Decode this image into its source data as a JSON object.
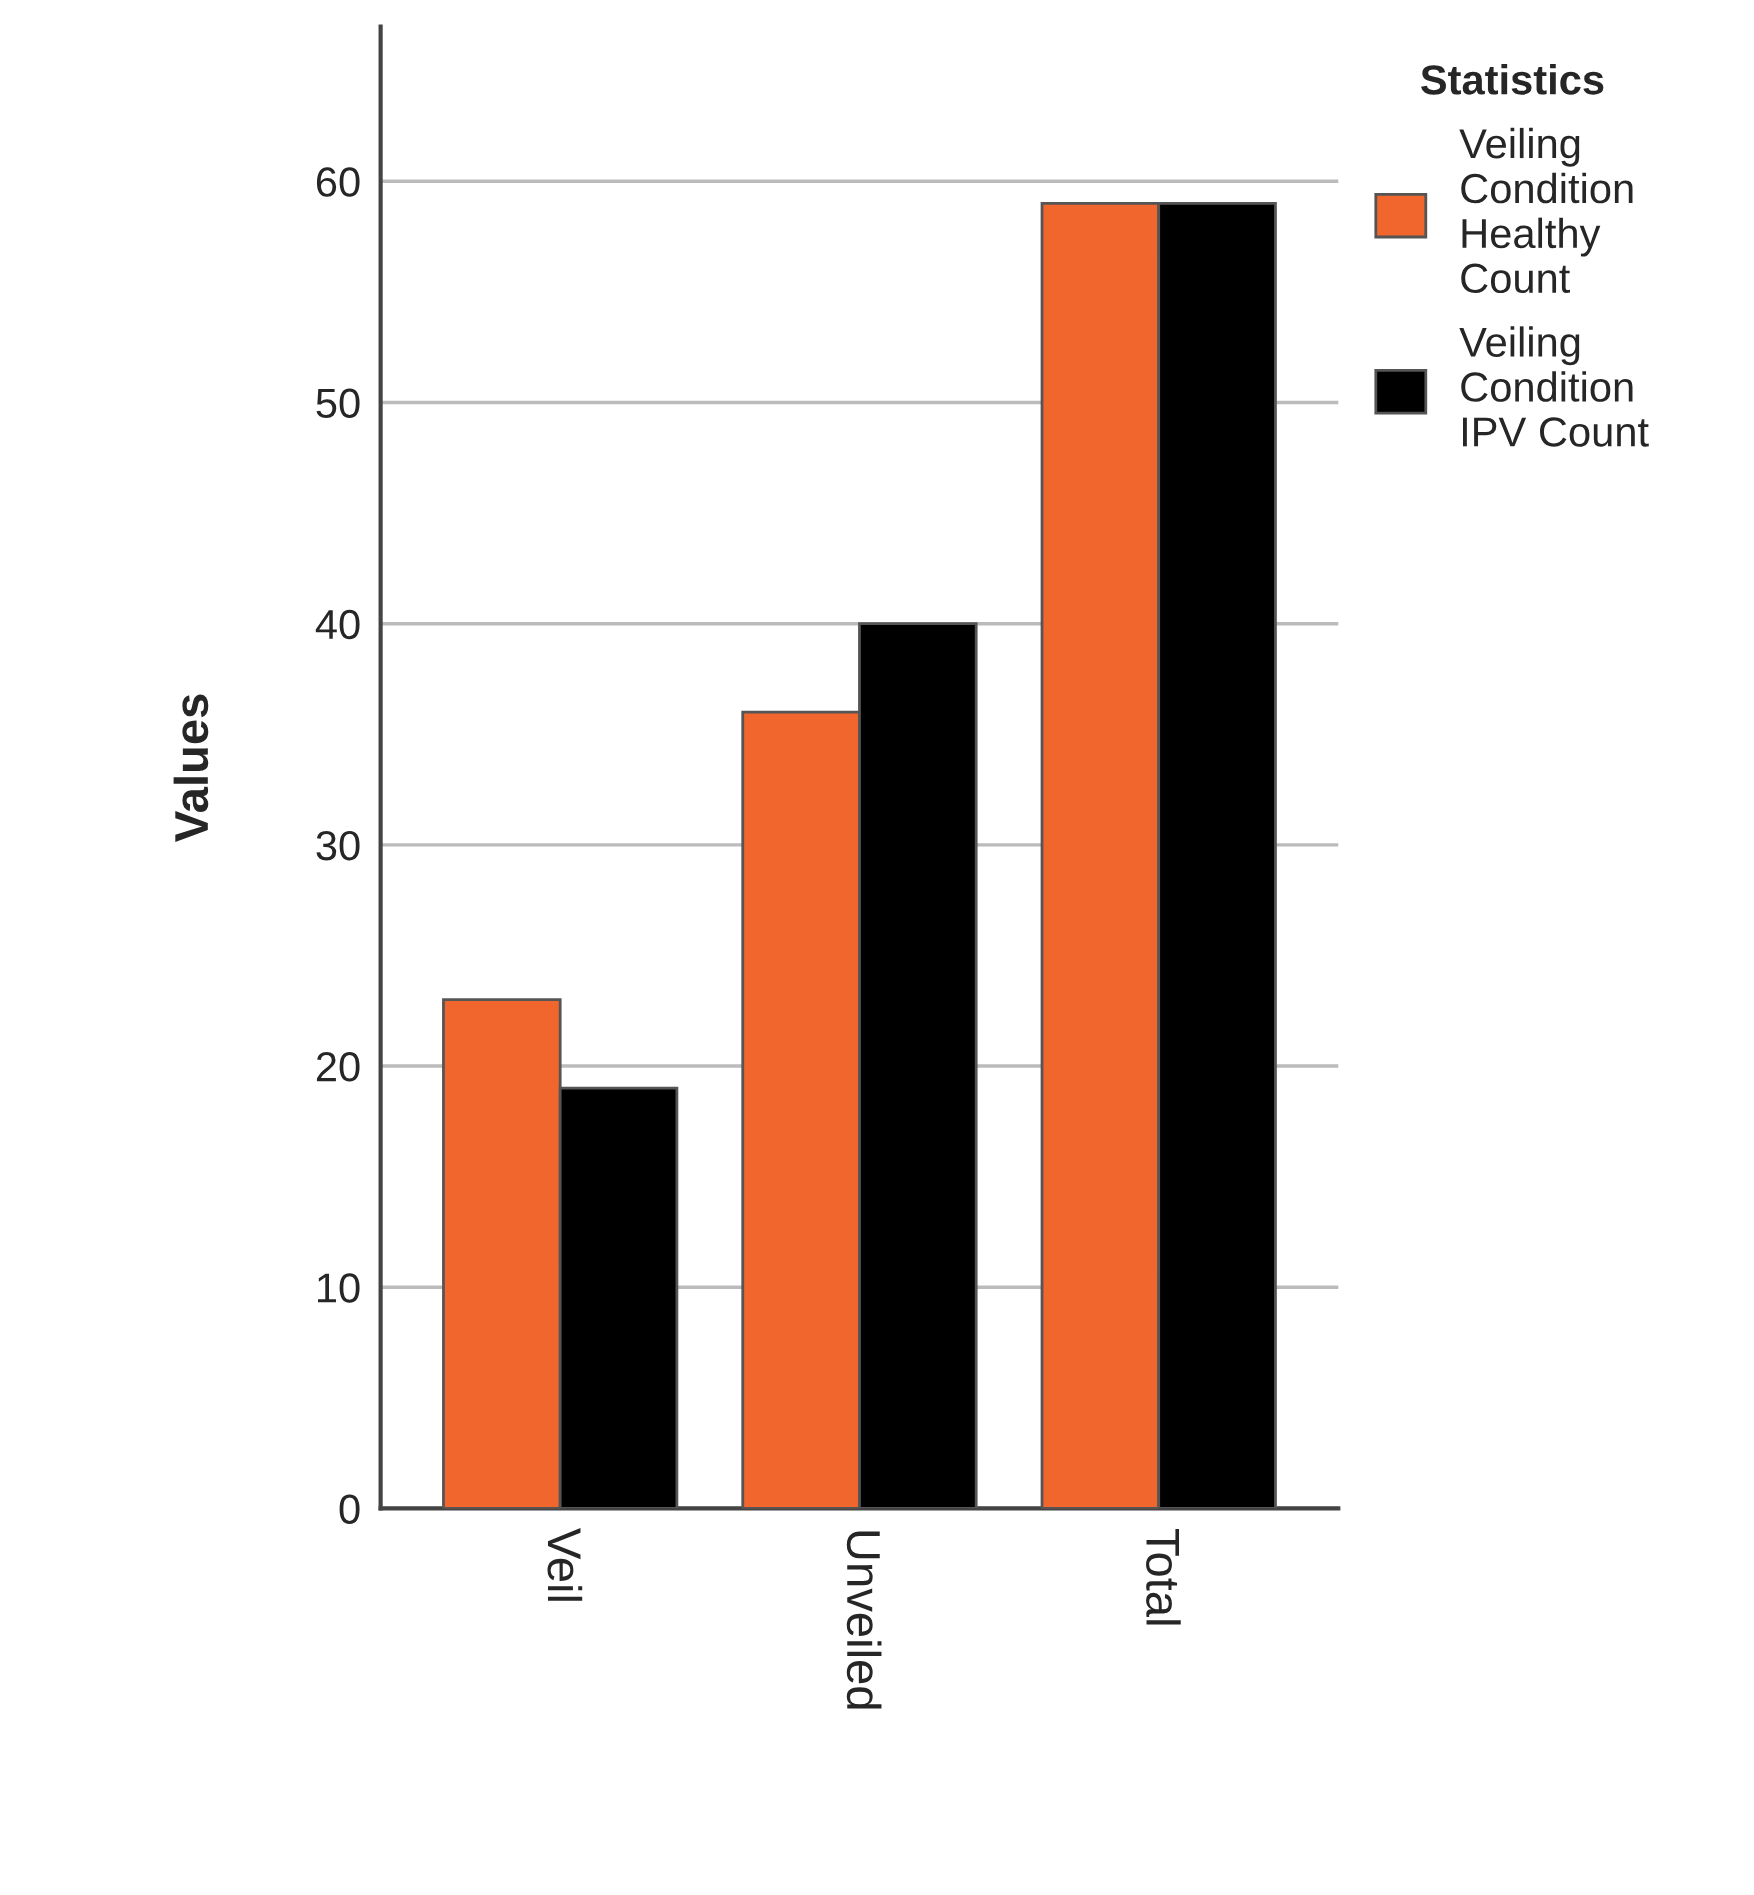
{
  "chart_data": {
    "type": "bar",
    "ylabel": "Values",
    "legend_title": "Statistics",
    "categories": [
      "Veil",
      "Unveiled",
      "Total"
    ],
    "series": [
      {
        "name": "Veiling\nCondition\nHealthy\nCount",
        "color": "#f0662c",
        "values": [
          23,
          36,
          59
        ]
      },
      {
        "name": "Veiling\nCondition\nIPV Count",
        "color": "#000000",
        "values": [
          19,
          40,
          59
        ]
      }
    ],
    "ylim": [
      0,
      67
    ],
    "yticks": [
      0,
      10,
      20,
      30,
      40,
      50,
      60
    ],
    "grid": "y",
    "legend": "top right"
  }
}
